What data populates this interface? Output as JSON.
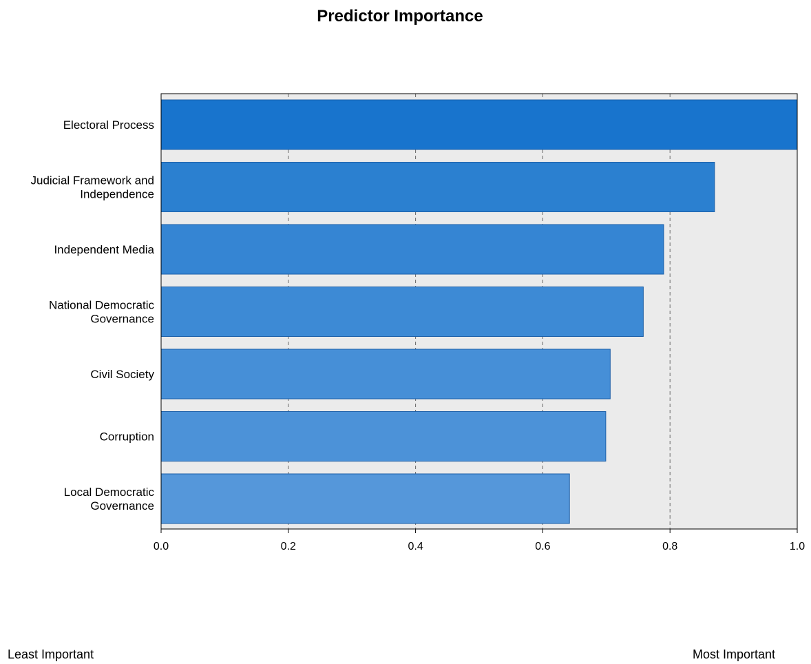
{
  "chart_data": {
    "type": "bar",
    "orientation": "horizontal",
    "title": "Predictor Importance",
    "categories": [
      [
        "Electoral Process"
      ],
      [
        "Judicial Framework and",
        "Independence"
      ],
      [
        "Independent Media"
      ],
      [
        "National Democratic",
        "Governance"
      ],
      [
        "Civil Society"
      ],
      [
        "Corruption"
      ],
      [
        "Local Democratic",
        "Governance"
      ]
    ],
    "values": [
      1.0,
      0.87,
      0.79,
      0.758,
      0.706,
      0.699,
      0.642
    ],
    "bar_colors": [
      "#1874CD",
      "#2B80D0",
      "#3585D3",
      "#3D8AD5",
      "#468FD7",
      "#4C92D8",
      "#5597DA"
    ],
    "xlim": [
      0.0,
      1.0
    ],
    "xticks": [
      0.0,
      0.2,
      0.4,
      0.6,
      0.8,
      1.0
    ],
    "xtick_labels": [
      "0.0",
      "0.2",
      "0.4",
      "0.6",
      "0.8",
      "1.0"
    ],
    "grid": "vertical-dashed",
    "xlabel": "",
    "ylabel": ""
  },
  "footer": {
    "least_label": "Least Important",
    "most_label": "Most Important"
  },
  "colors": {
    "plot_background": "#EBEBEB",
    "bar_border": "#1B5FA8",
    "grid": "#666666",
    "axis": "#000000"
  }
}
